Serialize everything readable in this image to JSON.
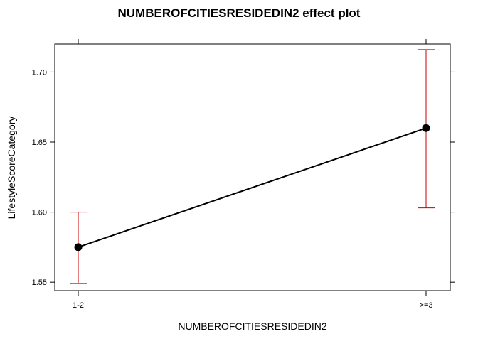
{
  "chart_data": {
    "type": "line",
    "title": "NUMBEROFCITIESRESIDEDIN2 effect plot",
    "xlabel": "NUMBEROFCITIESRESIDEDIN2",
    "ylabel": "LifestyleScoreCategory",
    "categories": [
      "1-2",
      ">=3"
    ],
    "series": [
      {
        "values": [
          1.575,
          1.66
        ],
        "lower": [
          1.549,
          1.603
        ],
        "upper": [
          1.6,
          1.716
        ]
      }
    ],
    "yticks": [
      "1.55",
      "1.60",
      "1.65",
      "1.70"
    ],
    "ylim": [
      1.544,
      1.72
    ],
    "grid": false,
    "colors": {
      "line": "#000000",
      "point": "#000000",
      "error_bar": "#cc0000",
      "frame": "#000000"
    }
  }
}
